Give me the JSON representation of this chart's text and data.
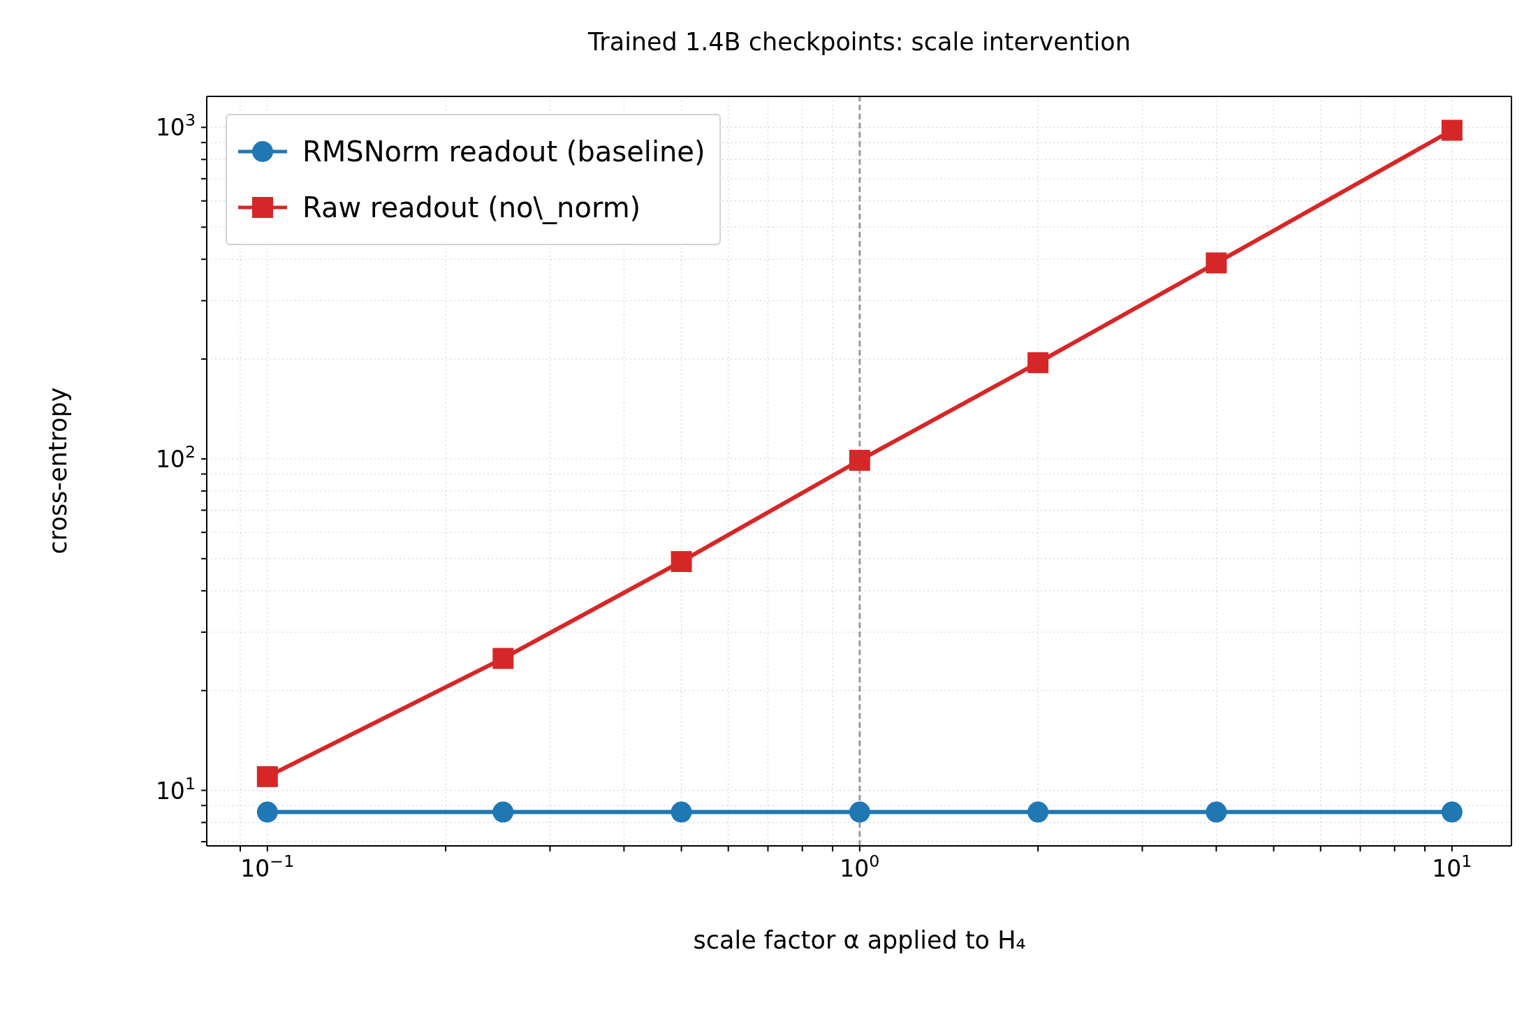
{
  "chart_data": {
    "type": "line",
    "title": "Trained 1.4B checkpoints: scale intervention",
    "xlabel": "scale factor α applied to H₄",
    "ylabel": "cross-entropy",
    "x": [
      0.1,
      0.25,
      0.5,
      1,
      2,
      4,
      10
    ],
    "series": [
      {
        "name": "RMSNorm readout (baseline)",
        "color": "#1f77b4",
        "marker": "circle",
        "values": [
          8.6,
          8.6,
          8.6,
          8.6,
          8.6,
          8.6,
          8.6
        ]
      },
      {
        "name": "Raw readout (no\\_norm)",
        "color": "#d62728",
        "marker": "square",
        "values": [
          11,
          25,
          49,
          99,
          195,
          390,
          980
        ]
      }
    ],
    "log": "xy",
    "xlim": [
      0.079,
      12.6
    ],
    "ylim": [
      6.8,
      1240
    ],
    "xticks": [
      {
        "value": 0.09,
        "label": null
      },
      {
        "value": 0.1,
        "label": "10$^{−1}$"
      },
      {
        "value": 0.2,
        "label": null
      },
      {
        "value": 0.3,
        "label": null
      },
      {
        "value": 0.4,
        "label": null
      },
      {
        "value": 0.5,
        "label": null
      },
      {
        "value": 0.6,
        "label": null
      },
      {
        "value": 0.7,
        "label": null
      },
      {
        "value": 0.8,
        "label": null
      },
      {
        "value": 0.9,
        "label": null
      },
      {
        "value": 1,
        "label": "10$^{0}$"
      },
      {
        "value": 2,
        "label": null
      },
      {
        "value": 3,
        "label": null
      },
      {
        "value": 4,
        "label": null
      },
      {
        "value": 5,
        "label": null
      },
      {
        "value": 6,
        "label": null
      },
      {
        "value": 7,
        "label": null
      },
      {
        "value": 8,
        "label": null
      },
      {
        "value": 9,
        "label": null
      },
      {
        "value": 10,
        "label": "10$^{1}$"
      }
    ],
    "yticks": [
      {
        "value": 7,
        "label": null
      },
      {
        "value": 8,
        "label": null
      },
      {
        "value": 9,
        "label": null
      },
      {
        "value": 10,
        "label": "10$^{1}$"
      },
      {
        "value": 20,
        "label": null
      },
      {
        "value": 30,
        "label": null
      },
      {
        "value": 40,
        "label": null
      },
      {
        "value": 50,
        "label": null
      },
      {
        "value": 60,
        "label": null
      },
      {
        "value": 70,
        "label": null
      },
      {
        "value": 80,
        "label": null
      },
      {
        "value": 90,
        "label": null
      },
      {
        "value": 100,
        "label": "10$^{2}$"
      },
      {
        "value": 200,
        "label": null
      },
      {
        "value": 300,
        "label": null
      },
      {
        "value": 400,
        "label": null
      },
      {
        "value": 500,
        "label": null
      },
      {
        "value": 600,
        "label": null
      },
      {
        "value": 700,
        "label": null
      },
      {
        "value": 800,
        "label": null
      },
      {
        "value": 900,
        "label": null
      },
      {
        "value": 1000,
        "label": "10$^{3}$"
      }
    ],
    "ref_lines": [
      {
        "axis": "x",
        "value": 1,
        "color": "#999999",
        "line_style": "dashed"
      }
    ],
    "grid": true,
    "legend": "top left",
    "line_style": "solid"
  }
}
